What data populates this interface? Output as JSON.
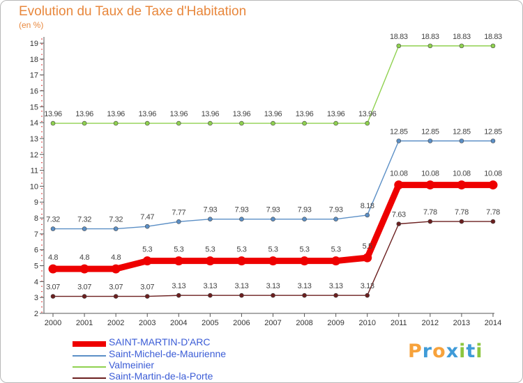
{
  "title": "Evolution du Taux de Taxe d'Habitation",
  "unit_label": "(en %)",
  "logo": {
    "letters": [
      "P",
      "r",
      "o",
      "x",
      "i",
      "t",
      "i"
    ],
    "colors": [
      "#f7a23b",
      "#3f9bd8",
      "#f7a23b",
      "#3f9bd8",
      "#8cc63f",
      "#3f9bd8",
      "#8cc63f"
    ]
  },
  "chart_data": {
    "type": "line",
    "title": "Evolution du Taux de Taxe d'Habitation",
    "xlabel": "",
    "ylabel": "(en %)",
    "x": [
      "2000",
      "2001",
      "2002",
      "2003",
      "2004",
      "2005",
      "2006",
      "2007",
      "2008",
      "2009",
      "2010",
      "2011",
      "2012",
      "2013",
      "2014"
    ],
    "ylim": [
      2,
      19
    ],
    "yticks": [
      2,
      3,
      4,
      5,
      6,
      7,
      8,
      9,
      10,
      11,
      12,
      13,
      14,
      15,
      16,
      17,
      18,
      19
    ],
    "grid": false,
    "legend": "bottom-left",
    "series": [
      {
        "name": "SAINT-MARTIN-D'ARC",
        "color": "#ee0000",
        "width": 9,
        "values": [
          4.8,
          4.8,
          4.8,
          5.3,
          5.3,
          5.3,
          5.3,
          5.3,
          5.3,
          5.3,
          5.5,
          10.08,
          10.08,
          10.08,
          10.08
        ],
        "labels": [
          "4.8",
          "4.8",
          "4.8",
          "5.3",
          "5.3",
          "5.3",
          "5.3",
          "5.3",
          "5.3",
          "5.3",
          "5.5",
          "10.08",
          "10.08",
          "10.08",
          "10.08"
        ]
      },
      {
        "name": "Saint-Michel-de-Maurienne",
        "color": "#5b8fc6",
        "width": 1.4,
        "values": [
          7.32,
          7.32,
          7.32,
          7.47,
          7.77,
          7.93,
          7.93,
          7.93,
          7.93,
          7.93,
          8.18,
          12.85,
          12.85,
          12.85,
          12.85
        ],
        "labels": [
          "7.32",
          "7.32",
          "7.32",
          "7.47",
          "7.77",
          "7.93",
          "7.93",
          "7.93",
          "7.93",
          "7.93",
          "8.18",
          "12.85",
          "12.85",
          "12.85",
          "12.85"
        ]
      },
      {
        "name": "Valmeinier",
        "color": "#8fd14f",
        "width": 1.4,
        "values": [
          13.96,
          13.96,
          13.96,
          13.96,
          13.96,
          13.96,
          13.96,
          13.96,
          13.96,
          13.96,
          13.96,
          18.83,
          18.83,
          18.83,
          18.83
        ],
        "labels": [
          "13.96",
          "13.96",
          "13.96",
          "13.96",
          "13.96",
          "13.96",
          "13.96",
          "13.96",
          "13.96",
          "13.96",
          "13.96",
          "18.83",
          "18.83",
          "18.83",
          "18.83"
        ]
      },
      {
        "name": "Saint-Martin-de-la-Porte",
        "color": "#6b1f1f",
        "width": 1.4,
        "values": [
          3.07,
          3.07,
          3.07,
          3.07,
          3.13,
          3.13,
          3.13,
          3.13,
          3.13,
          3.13,
          3.13,
          7.63,
          7.78,
          7.78,
          7.78
        ],
        "labels": [
          "3.07",
          "3.07",
          "3.07",
          "3.07",
          "3.13",
          "3.13",
          "3.13",
          "3.13",
          "3.13",
          "3.13",
          "3.13",
          "7.63",
          "7.78",
          "7.78",
          "7.78"
        ]
      }
    ]
  }
}
